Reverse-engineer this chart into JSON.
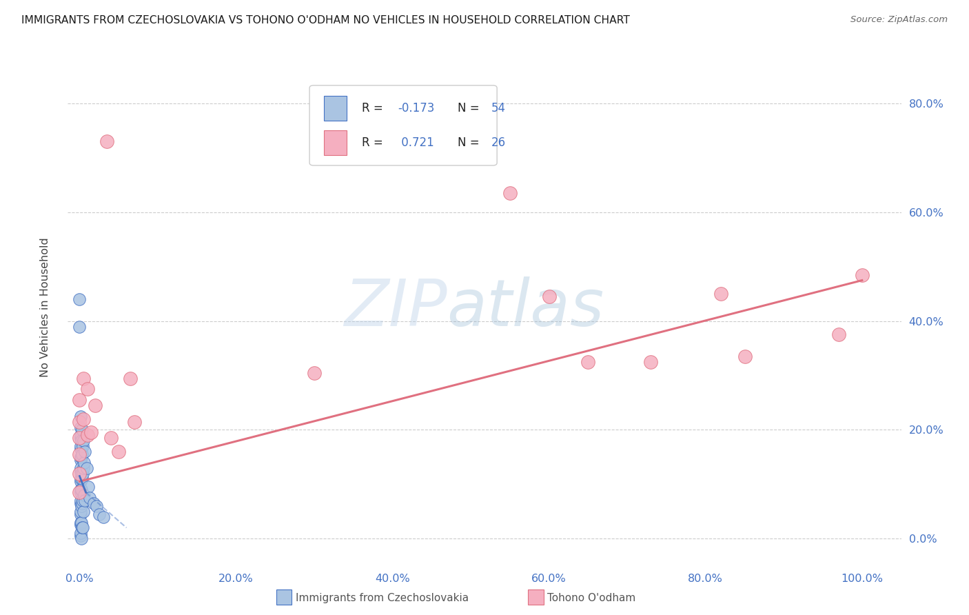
{
  "title": "IMMIGRANTS FROM CZECHOSLOVAKIA VS TOHONO O'ODHAM NO VEHICLES IN HOUSEHOLD CORRELATION CHART",
  "source": "Source: ZipAtlas.com",
  "color_blue": "#aac4e2",
  "color_pink": "#f5afc0",
  "line_color_blue": "#4472c4",
  "line_color_pink": "#e07080",
  "tick_color": "#4472c4",
  "ylabel": "No Vehicles in Household",
  "blue_points": [
    [
      0.0,
      0.44
    ],
    [
      0.0,
      0.39
    ],
    [
      0.001,
      0.225
    ],
    [
      0.001,
      0.205
    ],
    [
      0.001,
      0.185
    ],
    [
      0.001,
      0.165
    ],
    [
      0.001,
      0.145
    ],
    [
      0.001,
      0.125
    ],
    [
      0.001,
      0.105
    ],
    [
      0.001,
      0.085
    ],
    [
      0.001,
      0.065
    ],
    [
      0.001,
      0.045
    ],
    [
      0.001,
      0.025
    ],
    [
      0.001,
      0.005
    ],
    [
      0.0015,
      0.19
    ],
    [
      0.0015,
      0.17
    ],
    [
      0.0015,
      0.15
    ],
    [
      0.0015,
      0.13
    ],
    [
      0.0015,
      0.11
    ],
    [
      0.0015,
      0.09
    ],
    [
      0.0015,
      0.07
    ],
    [
      0.0015,
      0.05
    ],
    [
      0.0015,
      0.03
    ],
    [
      0.0015,
      0.01
    ],
    [
      0.002,
      0.18
    ],
    [
      0.002,
      0.15
    ],
    [
      0.002,
      0.12
    ],
    [
      0.002,
      0.09
    ],
    [
      0.002,
      0.06
    ],
    [
      0.002,
      0.03
    ],
    [
      0.002,
      0.0
    ],
    [
      0.003,
      0.2
    ],
    [
      0.003,
      0.155
    ],
    [
      0.003,
      0.11
    ],
    [
      0.003,
      0.065
    ],
    [
      0.003,
      0.02
    ],
    [
      0.004,
      0.17
    ],
    [
      0.004,
      0.12
    ],
    [
      0.004,
      0.07
    ],
    [
      0.004,
      0.02
    ],
    [
      0.005,
      0.18
    ],
    [
      0.005,
      0.13
    ],
    [
      0.005,
      0.05
    ],
    [
      0.006,
      0.14
    ],
    [
      0.006,
      0.08
    ],
    [
      0.007,
      0.16
    ],
    [
      0.007,
      0.07
    ],
    [
      0.009,
      0.13
    ],
    [
      0.011,
      0.095
    ],
    [
      0.013,
      0.075
    ],
    [
      0.018,
      0.065
    ],
    [
      0.022,
      0.06
    ],
    [
      0.025,
      0.045
    ],
    [
      0.03,
      0.04
    ]
  ],
  "pink_points": [
    [
      0.0,
      0.255
    ],
    [
      0.0,
      0.215
    ],
    [
      0.0,
      0.185
    ],
    [
      0.0,
      0.155
    ],
    [
      0.0,
      0.12
    ],
    [
      0.0,
      0.085
    ],
    [
      0.005,
      0.295
    ],
    [
      0.005,
      0.22
    ],
    [
      0.01,
      0.275
    ],
    [
      0.01,
      0.19
    ],
    [
      0.015,
      0.195
    ],
    [
      0.02,
      0.245
    ],
    [
      0.035,
      0.73
    ],
    [
      0.04,
      0.185
    ],
    [
      0.05,
      0.16
    ],
    [
      0.065,
      0.295
    ],
    [
      0.07,
      0.215
    ],
    [
      0.3,
      0.305
    ],
    [
      0.55,
      0.635
    ],
    [
      0.6,
      0.445
    ],
    [
      0.65,
      0.325
    ],
    [
      0.73,
      0.325
    ],
    [
      0.82,
      0.45
    ],
    [
      0.85,
      0.335
    ],
    [
      0.97,
      0.375
    ],
    [
      1.0,
      0.485
    ]
  ],
  "pink_line": [
    [
      0.0,
      1.0
    ],
    [
      0.105,
      0.475
    ]
  ],
  "blue_line_solid": [
    [
      0.0,
      0.008
    ],
    [
      0.115,
      0.085
    ]
  ],
  "blue_line_dashed": [
    [
      0.008,
      0.06
    ],
    [
      0.085,
      0.02
    ]
  ],
  "xlim": [
    -0.015,
    1.05
  ],
  "ylim": [
    -0.05,
    0.9
  ],
  "xtick_vals": [
    0.0,
    0.2,
    0.4,
    0.6,
    0.8,
    1.0
  ],
  "xtick_labels": [
    "0.0%",
    "20.0%",
    "40.0%",
    "60.0%",
    "80.0%",
    "100.0%"
  ],
  "ytick_vals": [
    0.0,
    0.2,
    0.4,
    0.6,
    0.8
  ],
  "ytick_labels": [
    "0.0%",
    "20.0%",
    "40.0%",
    "60.0%",
    "80.0%"
  ],
  "legend_r1": "-0.173",
  "legend_n1": "54",
  "legend_r2": " 0.721",
  "legend_n2": "26",
  "watermark_zip": "ZIP",
  "watermark_atlas": "atlas",
  "figsize": [
    14.06,
    8.92
  ],
  "dpi": 100
}
